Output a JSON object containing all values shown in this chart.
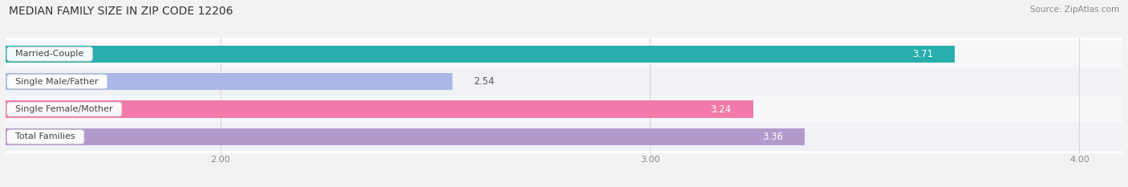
{
  "title": "MEDIAN FAMILY SIZE IN ZIP CODE 12206",
  "source": "Source: ZipAtlas.com",
  "categories": [
    "Married-Couple",
    "Single Male/Father",
    "Single Female/Mother",
    "Total Families"
  ],
  "values": [
    3.71,
    2.54,
    3.24,
    3.36
  ],
  "bar_colors": [
    "#27aead",
    "#aab8e8",
    "#f27aaa",
    "#b39acc"
  ],
  "xlim": [
    1.5,
    4.1
  ],
  "xmin": 1.5,
  "xticks": [
    2.0,
    3.0,
    4.0
  ],
  "xtick_labels": [
    "2.00",
    "3.00",
    "4.00"
  ],
  "bar_height": 0.62,
  "background_color": "#f2f2f2",
  "plot_bg_color": "#ffffff",
  "row_alt_color": "#f8f8f8",
  "title_fontsize": 10,
  "source_fontsize": 7.5,
  "label_fontsize": 8,
  "value_fontsize": 8.5,
  "tick_fontsize": 8
}
